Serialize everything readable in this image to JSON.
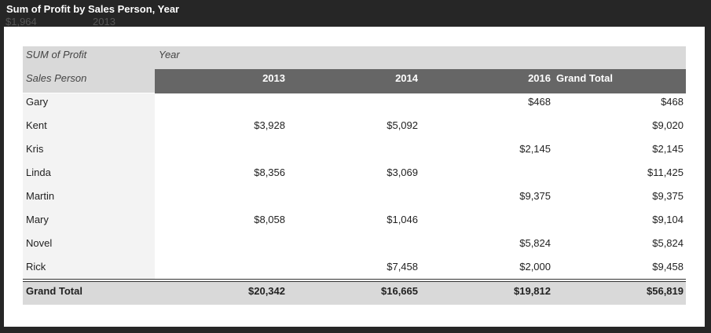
{
  "window": {
    "title": "Sum of Profit by Sales Person, Year",
    "background_cells": [
      "$1,964",
      "2013"
    ]
  },
  "table": {
    "corner": "SUM of Profit",
    "column_field": "Year",
    "row_field": "Sales Person",
    "columns": [
      "2013",
      "2014",
      "2016",
      "Grand Total"
    ],
    "rows": [
      [
        "Gary",
        null,
        null,
        "$468",
        "$468"
      ],
      [
        "Kent",
        "$3,928",
        "$5,092",
        null,
        "$9,020"
      ],
      [
        "Kris",
        null,
        null,
        "$2,145",
        "$2,145"
      ],
      [
        "Linda",
        "$8,356",
        "$3,069",
        null,
        "$11,425"
      ],
      [
        "Martin",
        null,
        null,
        "$9,375",
        "$9,375"
      ],
      [
        "Mary",
        "$8,058",
        "$1,046",
        null,
        "$9,104"
      ],
      [
        "Novel",
        null,
        null,
        "$5,824",
        "$5,824"
      ],
      [
        "Rick",
        null,
        "$7,458",
        "$2,000",
        "$9,458"
      ]
    ],
    "total": [
      "Grand Total",
      "$20,342",
      "$16,665",
      "$19,812",
      "$56,819"
    ]
  }
}
